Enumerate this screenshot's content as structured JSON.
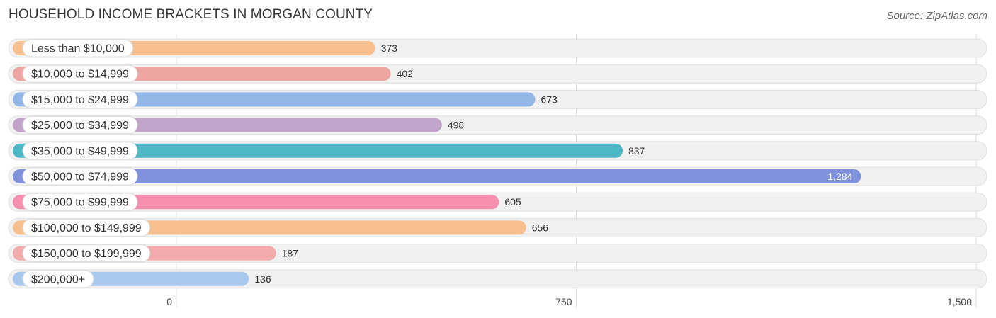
{
  "title": "HOUSEHOLD INCOME BRACKETS IN MORGAN COUNTY",
  "source": "Source: ZipAtlas.com",
  "chart_data": {
    "type": "bar",
    "orientation": "horizontal",
    "title": "HOUSEHOLD INCOME BRACKETS IN MORGAN COUNTY",
    "categories": [
      "Less than $10,000",
      "$10,000 to $14,999",
      "$15,000 to $24,999",
      "$25,000 to $34,999",
      "$35,000 to $49,999",
      "$50,000 to $74,999",
      "$75,000 to $99,999",
      "$100,000 to $149,999",
      "$150,000 to $199,999",
      "$200,000+"
    ],
    "values": [
      373,
      402,
      673,
      498,
      837,
      1284,
      605,
      656,
      187,
      136
    ],
    "value_labels": [
      "373",
      "402",
      "673",
      "498",
      "837",
      "1,284",
      "605",
      "656",
      "187",
      "136"
    ],
    "colors": [
      "#f9c08f",
      "#eea6a3",
      "#92b6e6",
      "#c2a3c9",
      "#4db8c5",
      "#7f92db",
      "#f48fb0",
      "#f9c08f",
      "#f2abab",
      "#a9c8ee"
    ],
    "xlim": [
      0,
      1500
    ],
    "ticks": [
      0,
      750,
      1500
    ],
    "tick_labels": [
      "0",
      "750",
      "1,500"
    ],
    "grid": true
  }
}
